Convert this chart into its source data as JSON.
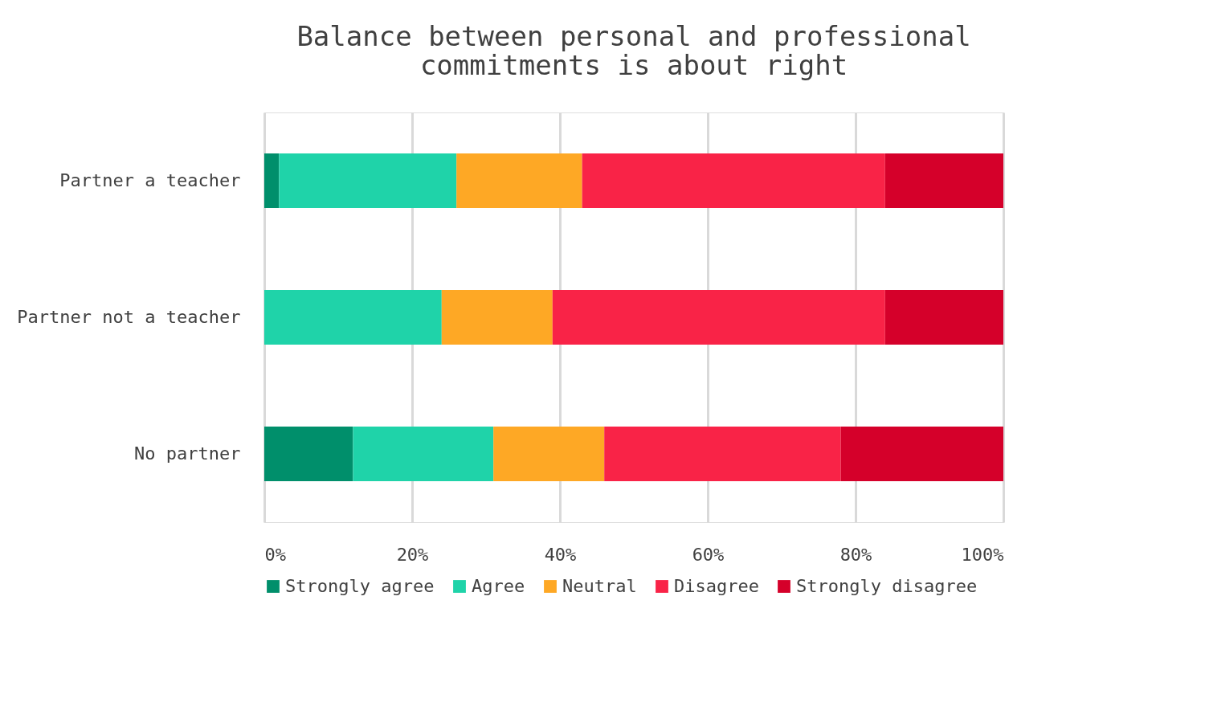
{
  "chart_data": {
    "type": "bar",
    "orientation": "horizontal",
    "stacked": true,
    "title": "Balance between personal and professional commitments is about right",
    "categories": [
      "Partner a teacher",
      "Partner not a teacher",
      "No partner"
    ],
    "series": [
      {
        "name": "Strongly agree",
        "color": "#008f6b",
        "values": [
          2,
          0,
          12
        ]
      },
      {
        "name": "Agree",
        "color": "#1fd3a9",
        "values": [
          24,
          24,
          19
        ]
      },
      {
        "name": "Neutral",
        "color": "#fea825",
        "values": [
          17,
          15,
          15
        ]
      },
      {
        "name": "Disagree",
        "color": "#f92347",
        "values": [
          41,
          45,
          32
        ]
      },
      {
        "name": "Strongly disagree",
        "color": "#d5002a",
        "values": [
          16,
          16,
          22
        ]
      }
    ],
    "xlim": [
      0,
      100
    ],
    "xticks": [
      {
        "value": 0,
        "label": "0%"
      },
      {
        "value": 20,
        "label": "20%"
      },
      {
        "value": 40,
        "label": "40%"
      },
      {
        "value": 60,
        "label": "60%"
      },
      {
        "value": 80,
        "label": "80%"
      },
      {
        "value": 100,
        "label": "100%"
      }
    ],
    "grid": "x",
    "legend": "bottom"
  }
}
